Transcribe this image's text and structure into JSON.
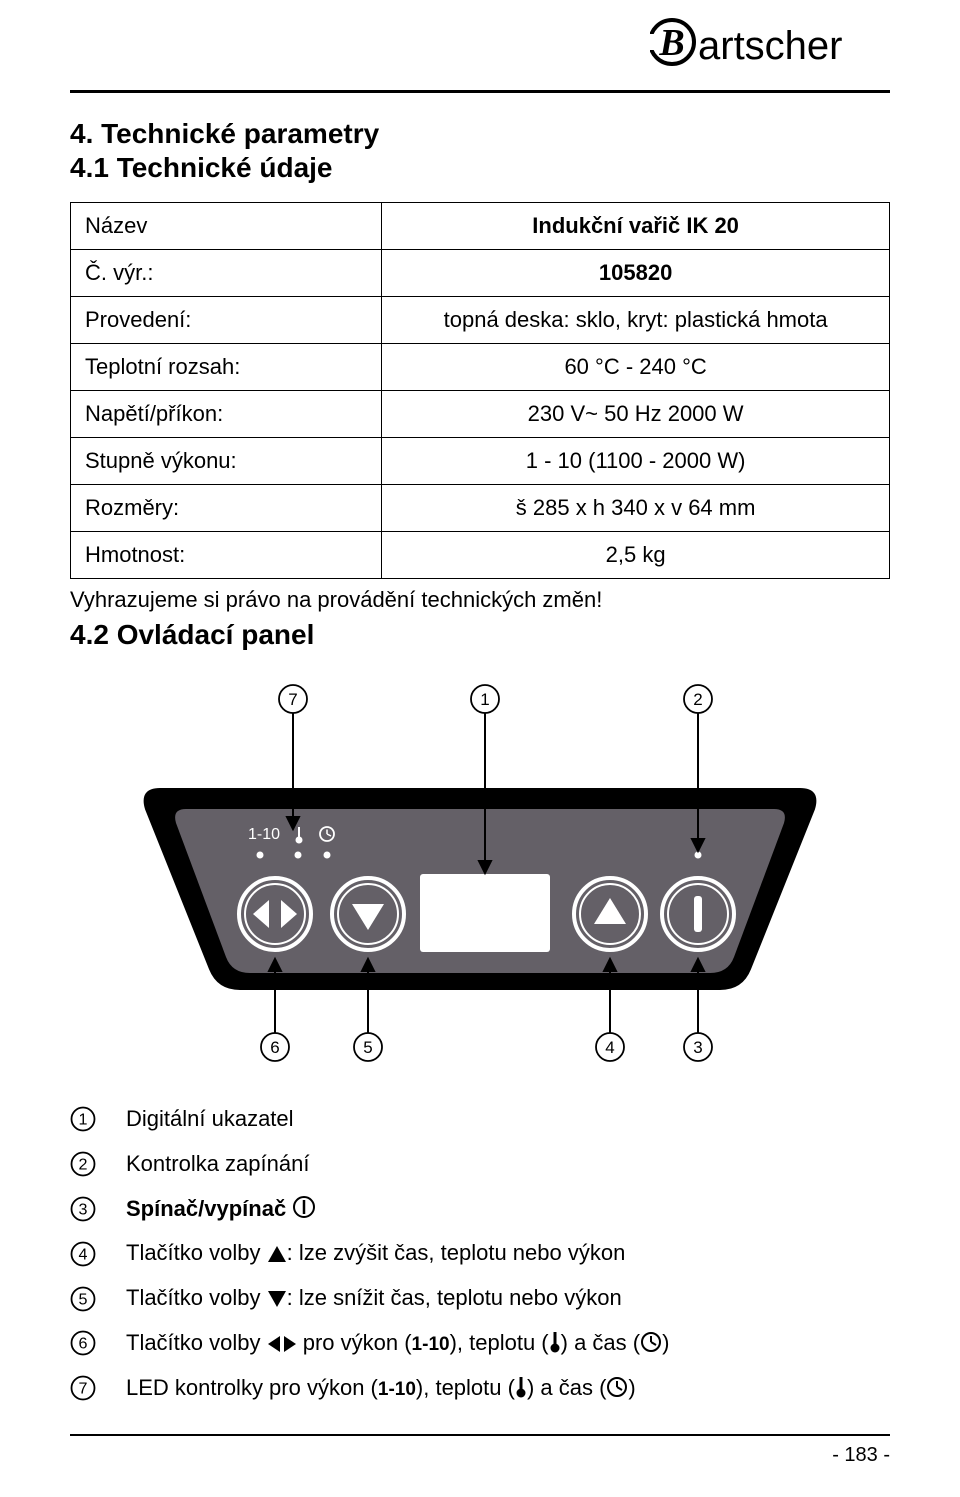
{
  "brand_name": "Bartscher",
  "section_title": "4. Technické parametry",
  "subsection_title_1": "4.1 Technické údaje",
  "spec_table": {
    "rows": [
      {
        "label": "Název",
        "value": "Indukční vařič IK 20",
        "bold": true
      },
      {
        "label": "Č. výr.:",
        "value": "105820",
        "bold": true
      },
      {
        "label": "Provedení:",
        "value": "topná deska: sklo, kryt: plastická hmota",
        "bold": false
      },
      {
        "label": "Teplotní rozsah:",
        "value": "60 °C - 240 °C",
        "bold": false
      },
      {
        "label": "Napětí/příkon:",
        "value": "230 V~  50 Hz  2000 W",
        "bold": false
      },
      {
        "label": "Stupně výkonu:",
        "value": "1 - 10 (1100 - 2000 W)",
        "bold": false
      },
      {
        "label": "Rozměry:",
        "value": "š 285 x h 340 x v 64 mm",
        "bold": false
      },
      {
        "label": "Hmotnost:",
        "value": "2,5 kg",
        "bold": false
      }
    ]
  },
  "reserve_note": "Vyhrazujeme si právo na provádění technických změn!",
  "subsection_title_2": "4.2 Ovládací panel",
  "panel": {
    "callouts_top": [
      7,
      1,
      2
    ],
    "callouts_bottom": [
      6,
      5,
      4,
      3
    ],
    "indicator_label": "1-10",
    "colors": {
      "panel_bg": "#000000",
      "panel_stroke": "#000000",
      "inner_fill": "#646067",
      "button_stroke": "#ffffff",
      "display_fill": "#ffffff"
    }
  },
  "legend": {
    "items": [
      {
        "n": 1,
        "text": "Digitální ukazatel"
      },
      {
        "n": 2,
        "text": "Kontrolka zapínání"
      },
      {
        "n": 3,
        "prefix": "Spínač/vypínač ",
        "icon": "power-circle",
        "bold": true
      },
      {
        "n": 4,
        "prefix": "Tlačítko volby ",
        "icon": "up-triangle",
        "suffix": ": lze zvýšit čas, teplotu nebo výkon"
      },
      {
        "n": 5,
        "prefix": "Tlačítko volby ",
        "icon": "down-triangle",
        "suffix": ": lze snížit čas, teplotu nebo výkon"
      },
      {
        "n": 6,
        "prefix": "Tlačítko volby ",
        "icon": "left-right",
        "mid": " pro výkon (",
        "p1": "1-10",
        "mid2": "), teplotu (",
        "icon2": "thermo",
        "mid3": ") a čas (",
        "icon3": "clock",
        "end": ")"
      },
      {
        "n": 7,
        "prefix": "LED kontrolky pro výkon (",
        "p1": "1-10",
        "mid": "), teplotu (",
        "icon": "thermo",
        "mid2": ") a čas (",
        "icon2": "clock",
        "end": ")"
      }
    ]
  },
  "page_number": "- 183 -"
}
